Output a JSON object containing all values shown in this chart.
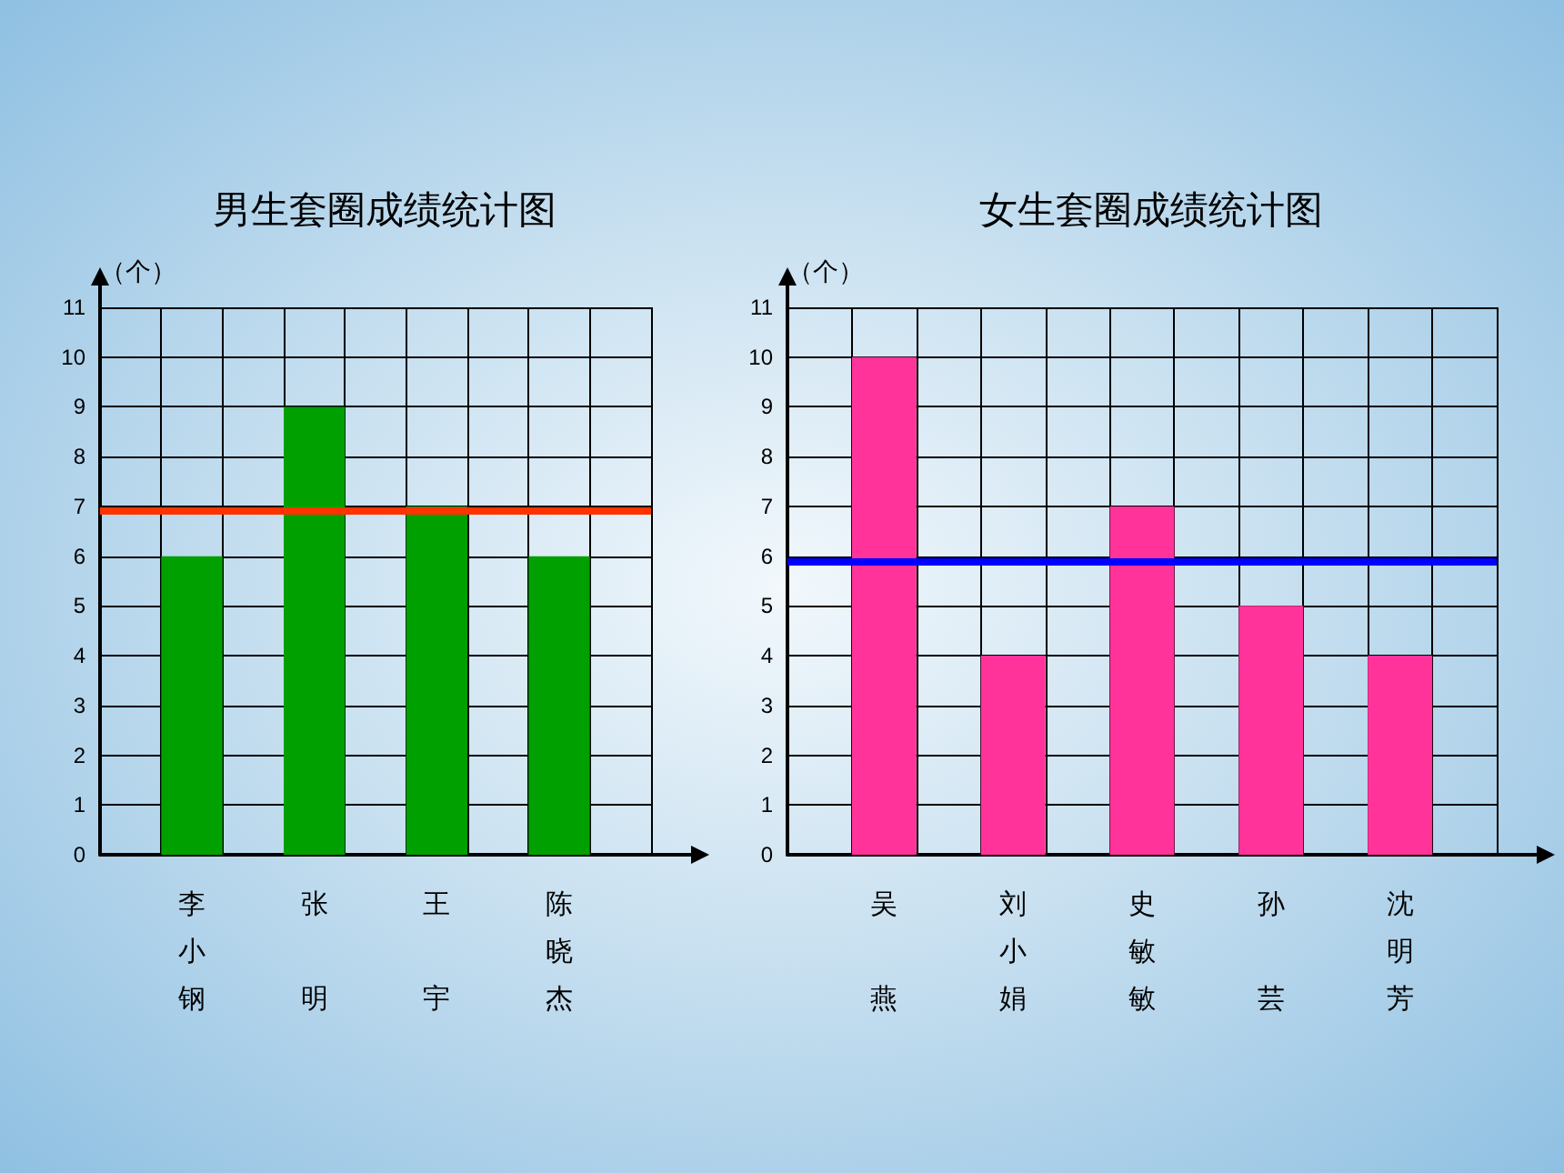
{
  "chart_data": [
    {
      "type": "bar",
      "title": "男生套圈成绩统计图",
      "ylabel": "（个）",
      "categories": [
        null,
        "李小钢",
        null,
        "张明",
        null,
        "王宇",
        null,
        "陈晓杰",
        null
      ],
      "series": [
        {
          "color": "#00a000",
          "values": [
            null,
            6,
            null,
            9,
            null,
            7,
            null,
            6,
            null
          ]
        }
      ],
      "ylim": [
        0,
        11
      ],
      "yticks": [
        0,
        1,
        2,
        3,
        4,
        5,
        6,
        7,
        8,
        9,
        10,
        11
      ],
      "grid": true,
      "ref_lines": [
        {
          "axis": "y",
          "value": 6.9,
          "color": "#ff3300"
        }
      ]
    },
    {
      "type": "bar",
      "title": "女生套圈成绩统计图",
      "ylabel": "（个）",
      "categories": [
        null,
        "吴燕",
        null,
        "刘小娟",
        null,
        "史敏敏",
        null,
        "孙芸",
        null,
        "沈明芳",
        null
      ],
      "series": [
        {
          "color": "#ff3399",
          "values": [
            null,
            10,
            null,
            4,
            null,
            7,
            null,
            5,
            null,
            4,
            null
          ]
        }
      ],
      "ylim": [
        0,
        11
      ],
      "yticks": [
        0,
        1,
        2,
        3,
        4,
        5,
        6,
        7,
        8,
        9,
        10,
        11
      ],
      "grid": true,
      "ref_lines": [
        {
          "axis": "y",
          "value": 5.9,
          "color": "#0000ff"
        }
      ]
    }
  ]
}
